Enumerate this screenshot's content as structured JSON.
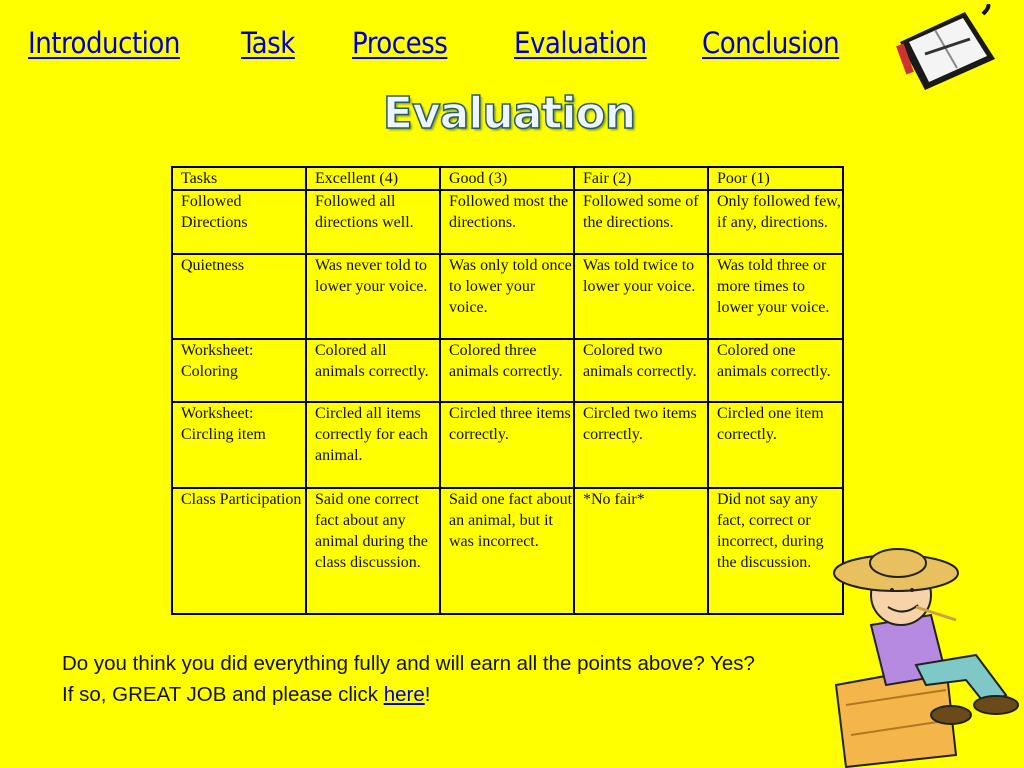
{
  "nav": [
    {
      "label": "Introduction"
    },
    {
      "label": "Task"
    },
    {
      "label": "Process"
    },
    {
      "label": "Evaluation"
    },
    {
      "label": "Conclusion"
    }
  ],
  "title": "Evaluation",
  "rubric": {
    "headers": [
      "Tasks",
      "Excellent (4)",
      "Good (3)",
      "Fair (2)",
      "Poor (1)"
    ],
    "rows": [
      [
        "Followed Directions",
        "Followed all directions well.",
        "Followed most the directions.",
        "Followed some of the directions.",
        "Only followed few, if any, directions."
      ],
      [
        "Quietness",
        "Was never told to lower your voice.",
        "Was only told once to lower your voice.",
        "Was told twice to lower your voice.",
        "Was told three or more times to lower your voice."
      ],
      [
        "Worksheet: Coloring",
        "Colored all animals correctly.",
        "Colored three animals correctly.",
        "Colored two animals correctly.",
        "Colored one animals correctly."
      ],
      [
        "Worksheet: Circling item",
        "Circled all items correctly for each animal.",
        "Circled three items correctly.",
        "Circled two items correctly.",
        "Circled one item correctly."
      ],
      [
        "Class Participation",
        "Said one correct fact about any animal during the class discussion.",
        "Said one fact about an animal, but it was incorrect.",
        "*No fair*",
        "Did not say any fact, correct or incorrect, during the discussion."
      ]
    ]
  },
  "footer": {
    "text": "Do you think you did everything fully and will earn all the points above? Yes? If so, GREAT JOB and please click ",
    "link": "here",
    "end": "!"
  },
  "icons": {
    "planner": "planner-icon",
    "boy": "boy-on-haybale-illustration"
  },
  "colors": {
    "background": "#ffff00",
    "link": "#0000cc"
  }
}
